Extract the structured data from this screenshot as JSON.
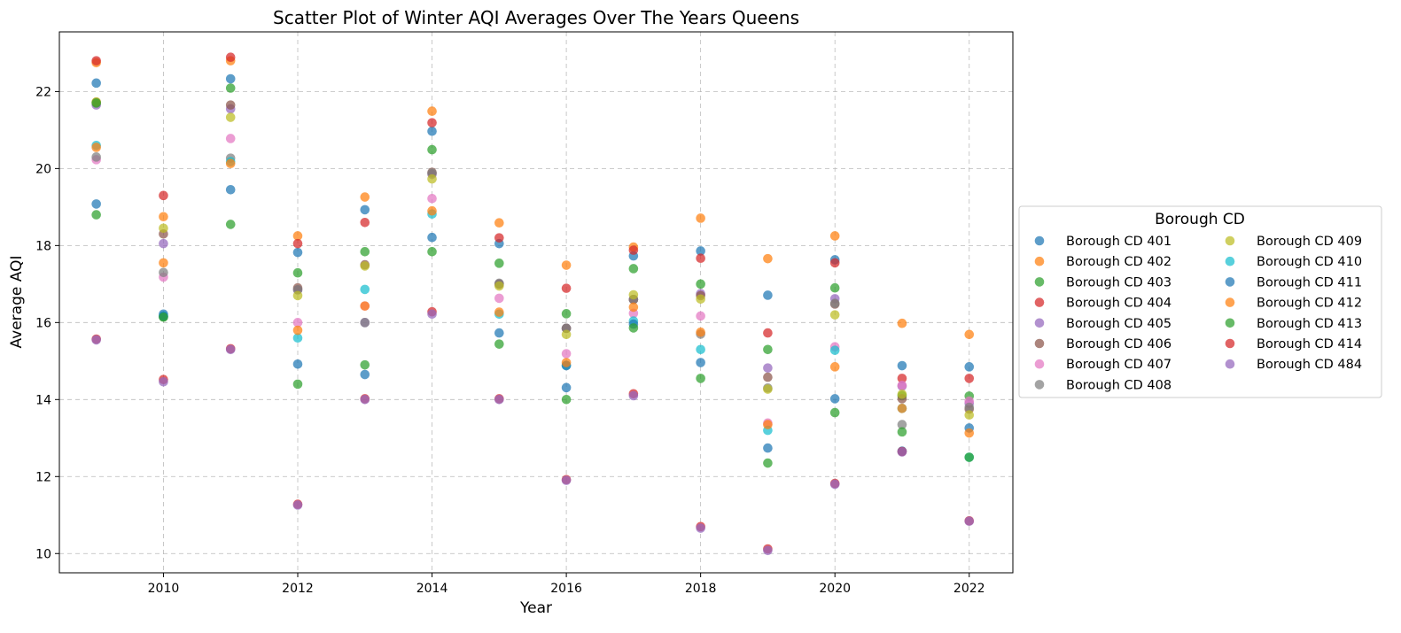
{
  "chart_data": {
    "type": "scatter",
    "title": "Scatter Plot of Winter AQI Averages Over The Years Queens",
    "xlabel": "Year",
    "ylabel": "Average AQI",
    "xlim": [
      2008.45,
      2022.65
    ],
    "ylim": [
      9.5,
      23.55
    ],
    "xticks": [
      2010,
      2012,
      2014,
      2016,
      2018,
      2020,
      2022
    ],
    "yticks": [
      10,
      12,
      14,
      16,
      18,
      20,
      22
    ],
    "grid": true,
    "legend": {
      "title": "Borough CD",
      "placement": "center-right-outside",
      "columns": 2
    },
    "x": [
      2009,
      2010,
      2011,
      2012,
      2013,
      2014,
      2015,
      2016,
      2017,
      2018,
      2019,
      2020,
      2021,
      2022
    ],
    "series": [
      {
        "name": "Borough CD 401",
        "color": "#1f77b4",
        "values": [
          22.22,
          16.22,
          22.33,
          17.82,
          18.93,
          20.97,
          18.05,
          14.31,
          17.73,
          17.86,
          16.71,
          17.63,
          14.88,
          14.85
        ]
      },
      {
        "name": "Borough CD 402",
        "color": "#ff7f0e",
        "values": [
          22.75,
          18.75,
          22.8,
          18.25,
          19.26,
          21.49,
          18.59,
          17.49,
          17.96,
          18.71,
          17.66,
          18.25,
          15.98,
          15.69
        ]
      },
      {
        "name": "Borough CD 403",
        "color": "#2ca02c",
        "values": [
          18.8,
          16.15,
          22.09,
          17.29,
          17.84,
          20.49,
          17.54,
          16.23,
          17.4,
          17.0,
          15.3,
          16.9,
          14.1,
          14.09
        ]
      },
      {
        "name": "Borough CD 404",
        "color": "#d62728",
        "values": [
          22.8,
          19.3,
          22.89,
          18.05,
          18.6,
          21.19,
          18.2,
          16.89,
          17.88,
          17.67,
          15.73,
          17.55,
          14.55,
          14.55
        ]
      },
      {
        "name": "Borough CD 405",
        "color": "#9467bd",
        "values": [
          21.65,
          18.05,
          21.55,
          16.85,
          16.0,
          19.85,
          17.0,
          15.85,
          16.6,
          16.75,
          14.82,
          16.62,
          14.35,
          13.9
        ]
      },
      {
        "name": "Borough CD 406",
        "color": "#8c564b",
        "values": [
          21.72,
          18.3,
          21.65,
          16.9,
          17.5,
          19.9,
          17.0,
          15.85,
          16.6,
          16.7,
          14.58,
          16.48,
          14.02,
          13.75
        ]
      },
      {
        "name": "Borough CD 407",
        "color": "#e377c2",
        "values": [
          20.23,
          17.18,
          20.78,
          16.0,
          16.43,
          19.22,
          16.63,
          15.19,
          16.24,
          16.17,
          13.39,
          15.37,
          14.37,
          13.96
        ]
      },
      {
        "name": "Borough CD 408",
        "color": "#7f7f7f",
        "values": [
          20.3,
          17.3,
          20.27,
          16.85,
          16.0,
          19.88,
          17.02,
          15.85,
          16.6,
          15.7,
          14.3,
          16.5,
          13.35,
          13.8
        ]
      },
      {
        "name": "Borough CD 409",
        "color": "#bcbd22",
        "values": [
          21.73,
          18.45,
          21.33,
          16.7,
          17.47,
          19.73,
          16.95,
          15.69,
          16.72,
          16.61,
          14.27,
          16.2,
          14.14,
          13.6
        ]
      },
      {
        "name": "Borough CD 410",
        "color": "#17becf",
        "values": [
          20.6,
          16.17,
          20.18,
          15.6,
          16.86,
          18.82,
          16.22,
          14.89,
          16.04,
          15.3,
          13.2,
          15.28,
          13.77,
          12.5
        ]
      },
      {
        "name": "Borough CD 411",
        "color": "#1f77b4",
        "values": [
          19.08,
          16.17,
          19.45,
          14.92,
          14.65,
          18.21,
          15.73,
          14.88,
          15.96,
          14.96,
          12.74,
          14.02,
          12.66,
          13.26
        ]
      },
      {
        "name": "Borough CD 412",
        "color": "#ff7f0e",
        "values": [
          20.55,
          17.55,
          20.13,
          15.8,
          16.43,
          18.9,
          16.27,
          14.96,
          16.4,
          15.75,
          13.35,
          14.85,
          13.77,
          13.13
        ]
      },
      {
        "name": "Borough CD 413",
        "color": "#2ca02c",
        "values": [
          21.7,
          16.14,
          18.55,
          14.4,
          14.9,
          17.84,
          15.44,
          14.0,
          15.86,
          14.55,
          12.35,
          13.66,
          13.16,
          12.5
        ]
      },
      {
        "name": "Borough CD 414",
        "color": "#d62728",
        "values": [
          15.57,
          14.52,
          15.32,
          11.28,
          14.02,
          16.28,
          14.02,
          11.92,
          14.15,
          10.7,
          10.12,
          11.82,
          12.65,
          10.85
        ]
      },
      {
        "name": "Borough CD 484",
        "color": "#9467bd",
        "values": [
          15.55,
          14.46,
          15.3,
          11.26,
          14.0,
          16.22,
          14.0,
          11.9,
          14.1,
          10.66,
          10.08,
          11.8,
          12.64,
          10.84
        ]
      }
    ]
  }
}
